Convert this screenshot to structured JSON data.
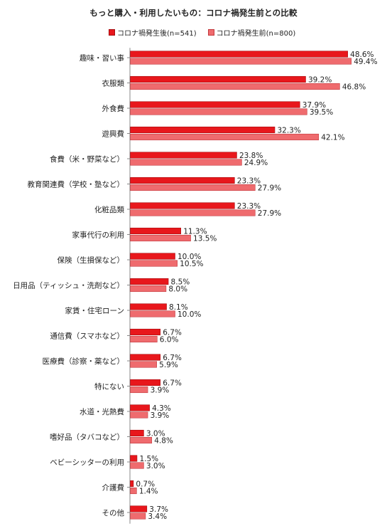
{
  "title": "もっと購入・利用したいもの：コロナ禍発生前との比較",
  "legend": {
    "after_label": "コロナ禍発生後(n=541)",
    "before_label": "コロナ禍発生前(n=800)"
  },
  "colors": {
    "after": "#e8171c",
    "after_edge": "#a50d10",
    "before": "#ef6b6e",
    "before_edge": "#c23a3e",
    "axis": "#888888"
  },
  "chart_data": {
    "type": "bar",
    "orientation": "horizontal",
    "title": "もっと購入・利用したいもの：コロナ禍発生前との比較",
    "value_suffix": "%",
    "categories": [
      "趣味・習い事",
      "衣服類",
      "外食費",
      "遊興費",
      "食費（米・野菜など）",
      "教育関連費（学校・塾など）",
      "化粧品類",
      "家事代行の利用",
      "保険（生損保など）",
      "日用品（ティッシュ・洗剤など）",
      "家賃・住宅ローン",
      "通信費（スマホなど）",
      "医療費（診察・薬など）",
      "特にない",
      "水道・光熱費",
      "嗜好品（タバコなど）",
      "ベビーシッターの利用",
      "介護費",
      "その他"
    ],
    "series": [
      {
        "name": "コロナ禍発生後(n=541)",
        "values": [
          48.6,
          39.2,
          37.9,
          32.3,
          23.8,
          23.3,
          23.3,
          11.3,
          10.0,
          8.5,
          8.1,
          6.7,
          6.7,
          6.7,
          4.3,
          3.0,
          1.5,
          0.7,
          3.7
        ]
      },
      {
        "name": "コロナ禍発生前(n=800)",
        "values": [
          49.4,
          46.8,
          39.5,
          42.1,
          24.9,
          27.9,
          27.9,
          13.5,
          10.5,
          8.0,
          10.0,
          6.0,
          5.9,
          3.9,
          3.9,
          4.8,
          3.0,
          1.4,
          3.4
        ]
      }
    ],
    "xlim": [
      0,
      50
    ],
    "legend_position": "top",
    "grid": false
  }
}
